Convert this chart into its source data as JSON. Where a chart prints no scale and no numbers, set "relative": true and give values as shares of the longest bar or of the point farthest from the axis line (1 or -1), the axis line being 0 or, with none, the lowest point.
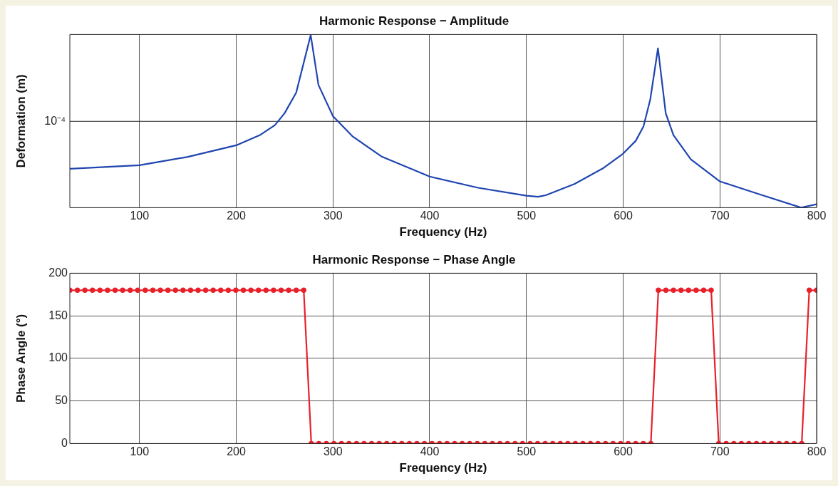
{
  "chart_data": [
    {
      "type": "line",
      "title": "Harmonic Response − Amplitude",
      "xlabel": "Frequency (Hz)",
      "ylabel": "Deformation (m)",
      "relative": true,
      "color": "#1f45b0",
      "marker": "none",
      "grid": "x",
      "xlim": [
        28,
        800
      ],
      "xticks": [
        100,
        200,
        300,
        400,
        500,
        600,
        700,
        800
      ],
      "x": [
        28,
        100,
        150,
        200,
        225,
        240,
        250,
        262,
        277,
        285,
        300,
        320,
        350,
        400,
        450,
        500,
        512,
        520,
        550,
        580,
        600,
        613,
        621,
        628,
        636,
        644,
        652,
        670,
        700,
        740,
        784,
        800
      ],
      "values": [
        0.225,
        0.246,
        0.294,
        0.361,
        0.422,
        0.478,
        0.547,
        0.666,
        1,
        0.711,
        0.53,
        0.414,
        0.297,
        0.18,
        0.115,
        0.069,
        0.063,
        0.072,
        0.138,
        0.231,
        0.313,
        0.387,
        0.47,
        0.626,
        0.923,
        0.547,
        0.42,
        0.28,
        0.152,
        0.079,
        0,
        0.02
      ],
      "ref_lines": [
        {
          "axis": "y",
          "value": 0.5,
          "label": "10⁻⁴"
        }
      ]
    },
    {
      "type": "line",
      "title": "Harmonic Response − Phase Angle",
      "xlabel": "Frequency (Hz)",
      "ylabel": "Phase Angle (°)",
      "color": "#e8202a",
      "marker": "circle",
      "grid": true,
      "xlim": [
        28,
        800
      ],
      "xticks": [
        100,
        200,
        300,
        400,
        500,
        600,
        700,
        800
      ],
      "ylim": [
        0,
        200
      ],
      "yticks": [
        0,
        50,
        100,
        150,
        200
      ],
      "x": [
        28,
        35.8,
        43.6,
        51.4,
        59.2,
        67,
        74.8,
        82.6,
        90.4,
        98.2,
        106,
        113.8,
        121.6,
        129.4,
        137.2,
        145,
        152.8,
        160.6,
        168.4,
        176.2,
        184,
        191.8,
        199.6,
        207.4,
        215.2,
        223,
        230.8,
        238.6,
        246.4,
        254.2,
        262,
        269.8,
        277.6,
        285.4,
        293.2,
        301,
        308.8,
        316.6,
        324.4,
        332.2,
        340,
        347.8,
        355.6,
        363.4,
        371.2,
        379,
        386.8,
        394.6,
        402.4,
        410.2,
        418,
        425.8,
        433.6,
        441.4,
        449.2,
        457,
        464.8,
        472.6,
        480.4,
        488.2,
        496,
        503.8,
        511.6,
        519.4,
        527.2,
        535,
        542.8,
        550.6,
        558.4,
        566.2,
        574,
        581.8,
        589.6,
        597.4,
        605.2,
        613,
        620.8,
        628.6,
        636.4,
        644.2,
        652,
        659.8,
        667.6,
        675.4,
        683.2,
        691,
        698.8,
        706.6,
        714.4,
        722.2,
        730,
        737.8,
        745.6,
        753.4,
        761.2,
        769,
        776.8,
        784.6,
        792.4,
        800
      ],
      "values": [
        180,
        180,
        180,
        180,
        180,
        180,
        180,
        180,
        180,
        180,
        180,
        180,
        180,
        180,
        180,
        180,
        180,
        180,
        180,
        180,
        180,
        180,
        180,
        180,
        180,
        180,
        180,
        180,
        180,
        180,
        180,
        180,
        0,
        0,
        0,
        0,
        0,
        0,
        0,
        0,
        0,
        0,
        0,
        0,
        0,
        0,
        0,
        0,
        0,
        0,
        0,
        0,
        0,
        0,
        0,
        0,
        0,
        0,
        0,
        0,
        0,
        0,
        0,
        0,
        0,
        0,
        0,
        0,
        0,
        0,
        0,
        0,
        0,
        0,
        0,
        0,
        0,
        0,
        180,
        180,
        180,
        180,
        180,
        180,
        180,
        180,
        0,
        0,
        0,
        0,
        0,
        0,
        0,
        0,
        0,
        0,
        0,
        0,
        180,
        180
      ]
    }
  ]
}
